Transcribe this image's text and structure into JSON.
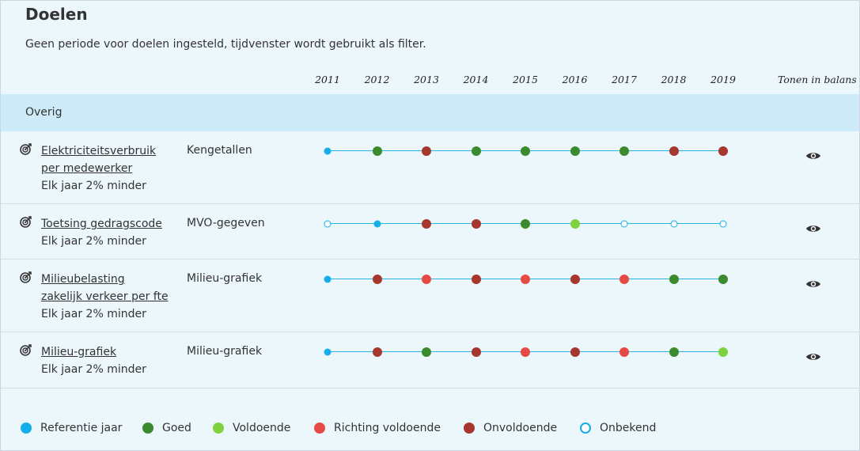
{
  "title": "Doelen",
  "subtitle": "Geen periode voor doelen ingesteld, tijdvenster wordt gebruikt als filter.",
  "years": [
    "2011",
    "2012",
    "2013",
    "2014",
    "2015",
    "2016",
    "2017",
    "2018",
    "2019"
  ],
  "tonen_header": "Tonen in balans",
  "group": {
    "label": "Overig"
  },
  "status_colors": {
    "referentie": "#14aeea",
    "goed": "#3b8a2e",
    "voldoende": "#7ed13f",
    "richting": "#e64a45",
    "onvoldoende": "#a5372f",
    "onbekend": "#14aeea"
  },
  "goals": [
    {
      "name_lines": [
        "Elektriciteitsverbruik",
        "per medewerker"
      ],
      "description": "Elk jaar 2% minder",
      "category": "Kengetallen",
      "statuses": [
        "referentie",
        "goed",
        "onvoldoende",
        "goed",
        "goed",
        "goed",
        "goed",
        "onvoldoende",
        "onvoldoende"
      ],
      "icon": "target-icon",
      "action_icon": "eye-icon"
    },
    {
      "name_lines": [
        "Toetsing gedragscode"
      ],
      "description": "Elk jaar 2% minder",
      "category": "MVO-gegeven",
      "statuses": [
        "onbekend",
        "referentie",
        "onvoldoende",
        "onvoldoende",
        "goed",
        "voldoende",
        "onbekend",
        "onbekend",
        "onbekend"
      ],
      "icon": "target-icon",
      "action_icon": "eye-icon"
    },
    {
      "name_lines": [
        "Milieubelasting",
        "zakelijk verkeer per fte"
      ],
      "description": "Elk jaar 2% minder",
      "category": "Milieu-grafiek",
      "statuses": [
        "referentie",
        "onvoldoende",
        "richting",
        "onvoldoende",
        "richting",
        "onvoldoende",
        "richting",
        "goed",
        "goed"
      ],
      "icon": "target-icon",
      "action_icon": "eye-icon"
    },
    {
      "name_lines": [
        "Milieu-grafiek"
      ],
      "description": "Elk jaar 2% minder",
      "category": "Milieu-grafiek",
      "statuses": [
        "referentie",
        "onvoldoende",
        "goed",
        "onvoldoende",
        "richting",
        "onvoldoende",
        "richting",
        "goed",
        "voldoende"
      ],
      "icon": "target-icon",
      "action_icon": "eye-icon"
    }
  ],
  "legend": [
    {
      "key": "referentie",
      "label": "Referentie jaar"
    },
    {
      "key": "goed",
      "label": "Goed"
    },
    {
      "key": "voldoende",
      "label": "Voldoende"
    },
    {
      "key": "richting",
      "label": "Richting voldoende"
    },
    {
      "key": "onvoldoende",
      "label": "Onvoldoende"
    },
    {
      "key": "onbekend",
      "label": "Onbekend"
    }
  ]
}
